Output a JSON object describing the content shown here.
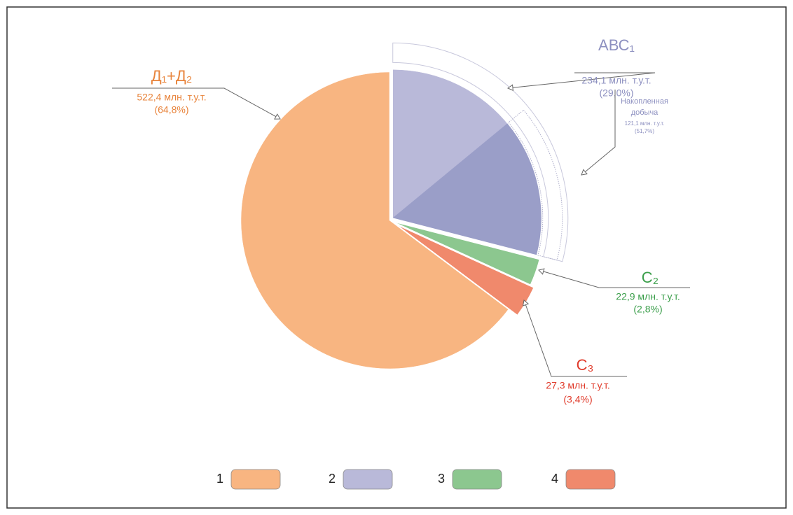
{
  "chart_data": {
    "type": "pie",
    "categories": [
      "Д₁+Д₂",
      "АВС₁",
      "С₂",
      "С₃"
    ],
    "values": [
      522.4,
      234.1,
      22.9,
      27.3
    ],
    "value_labels": [
      "522,4 млн. т.у.т.",
      "234,1 млн. т.у.т.",
      "22,9 млн. т.у.т.",
      "27,3 млн. т.у.т."
    ],
    "percents": [
      64.8,
      29.0,
      2.8,
      3.4
    ],
    "percent_labels": [
      "(64,8%)",
      "(29,0%)",
      "(2,8%)",
      "(3,4%)"
    ],
    "colors": [
      "#f8b581",
      "#b9b9d9",
      "#8cc78f",
      "#f0896c"
    ],
    "label_colors": [
      "#e8843c",
      "#8d90c0",
      "#3a9e4a",
      "#e03a2a"
    ],
    "legend": [
      "1",
      "2",
      "3",
      "4"
    ],
    "sub_slice": {
      "name_lines": [
        "Накопленная",
        "добыча"
      ],
      "value": 121.1,
      "value_label": "121,1 млн. т.у.т.",
      "percent": 51.7,
      "percent_label": "(51,7%)",
      "parent": 1,
      "color": "#9a9ec8"
    }
  }
}
